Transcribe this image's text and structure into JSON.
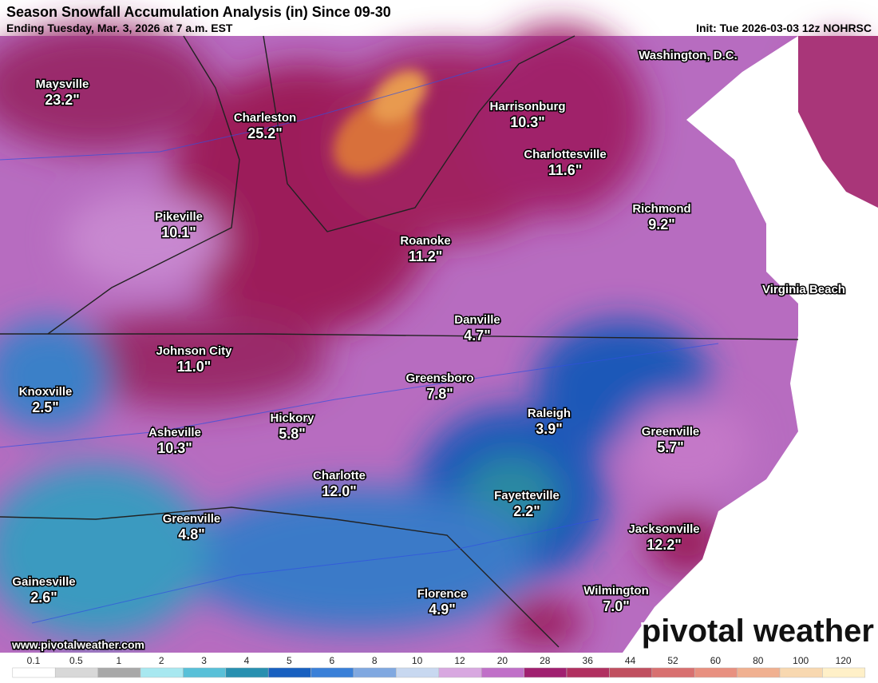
{
  "header": {
    "title": "Season Snowfall Accumulation Analysis (in) Since 09-30",
    "subtitle": "Ending Tuesday, Mar. 3, 2026 at 7 a.m. EST",
    "init": "Init: Tue 2026-03-03 12z NOHRSC"
  },
  "cities": [
    {
      "name": "Maysville",
      "value": "23.2\""
    },
    {
      "name": "Charleston",
      "value": "25.2\""
    },
    {
      "name": "Washington, D.C."
    },
    {
      "name": "Harrisonburg",
      "value": "10.3\""
    },
    {
      "name": "Charlottesville",
      "value": "11.6\""
    },
    {
      "name": "Pikeville",
      "value": "10.1\""
    },
    {
      "name": "Richmond",
      "value": "9.2\""
    },
    {
      "name": "Roanoke",
      "value": "11.2\""
    },
    {
      "name": "Virginia Beach"
    },
    {
      "name": "Danville",
      "value": "4.7\""
    },
    {
      "name": "Johnson City",
      "value": "11.0\""
    },
    {
      "name": "Greensboro",
      "value": "7.8\""
    },
    {
      "name": "Knoxville",
      "value": "2.5\""
    },
    {
      "name": "Raleigh",
      "value": "3.9\""
    },
    {
      "name": "Hickory",
      "value": "5.8\""
    },
    {
      "name": "Asheville",
      "value": "10.3\""
    },
    {
      "name": "Greenville",
      "value": "5.7\""
    },
    {
      "name": "Charlotte",
      "value": "12.0\""
    },
    {
      "name": "Fayetteville",
      "value": "2.2\""
    },
    {
      "name": "Greenville",
      "value": "4.8\""
    },
    {
      "name": "Jacksonville",
      "value": "12.2\""
    },
    {
      "name": "Gainesville",
      "value": "2.6\""
    },
    {
      "name": "Florence",
      "value": "4.9\""
    },
    {
      "name": "Wilmington",
      "value": "7.0\""
    }
  ],
  "legend": {
    "labels": [
      "0.1",
      "0.5",
      "1",
      "2",
      "3",
      "4",
      "5",
      "6",
      "8",
      "10",
      "12",
      "20",
      "28",
      "36",
      "44",
      "52",
      "60",
      "80",
      "100",
      "120"
    ]
  },
  "footer": {
    "url": "www.pivotalweather.com",
    "brand": "pivotal weather"
  }
}
